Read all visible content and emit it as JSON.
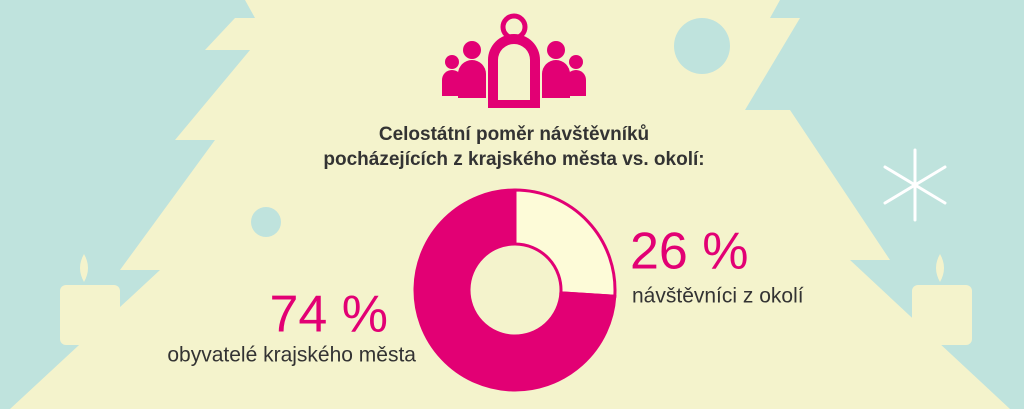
{
  "chart_data": {
    "type": "donut",
    "title": [
      "Celostátní poměr návštěvníků",
      "pocházejících z krajského města vs. okolí:"
    ],
    "categories": [
      "obyvatelé krajského města",
      "návštěvníci z okolí"
    ],
    "values": [
      74,
      26
    ],
    "value_labels": [
      "74 %",
      "26 %"
    ],
    "colors": [
      "#e20074",
      "#fdfbd8"
    ]
  }
}
